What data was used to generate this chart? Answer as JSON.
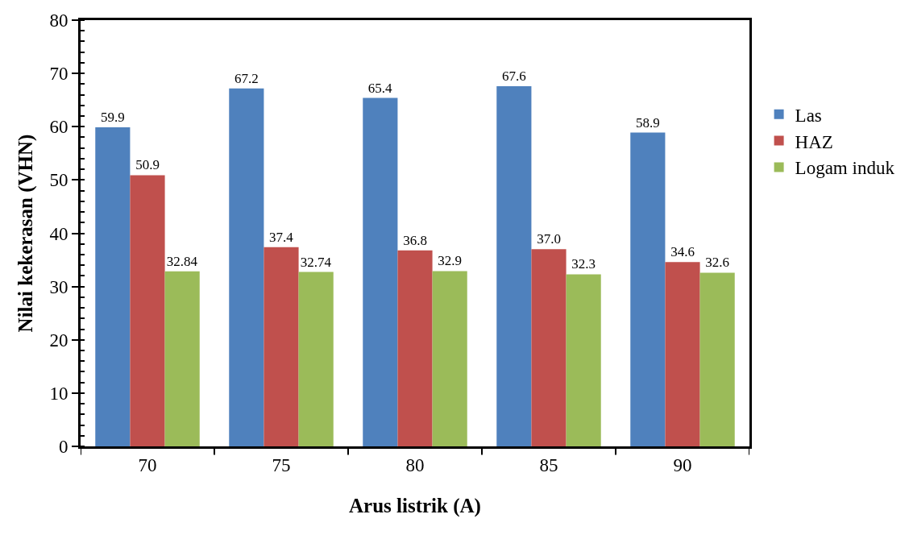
{
  "chart_data": {
    "type": "bar",
    "xlabel": "Arus listrik (A)",
    "ylabel": "Nilai kekerasan (VHN)",
    "categories": [
      "70",
      "75",
      "80",
      "85",
      "90"
    ],
    "series": [
      {
        "name": "Las",
        "color": "#4f81bd",
        "values": [
          59.9,
          67.2,
          65.4,
          67.6,
          58.9
        ],
        "value_labels": [
          "59.9",
          "67.2",
          "65.4",
          "67.6",
          "58.9"
        ]
      },
      {
        "name": "HAZ",
        "color": "#c0504d",
        "values": [
          50.9,
          37.4,
          36.8,
          37.0,
          34.6
        ],
        "value_labels": [
          "50.9",
          "37.4",
          "36.8",
          "37.0",
          "34.6"
        ]
      },
      {
        "name": "Logam induk",
        "color": "#9bbb59",
        "values": [
          32.84,
          32.74,
          32.9,
          32.3,
          32.6
        ],
        "value_labels": [
          "32.84",
          "32.74",
          "32.9",
          "32.3",
          "32.6"
        ]
      }
    ],
    "ylim": [
      0,
      80
    ],
    "yticks": [
      0,
      10,
      20,
      30,
      40,
      50,
      60,
      70,
      80
    ],
    "grid": false,
    "legend": "right"
  }
}
